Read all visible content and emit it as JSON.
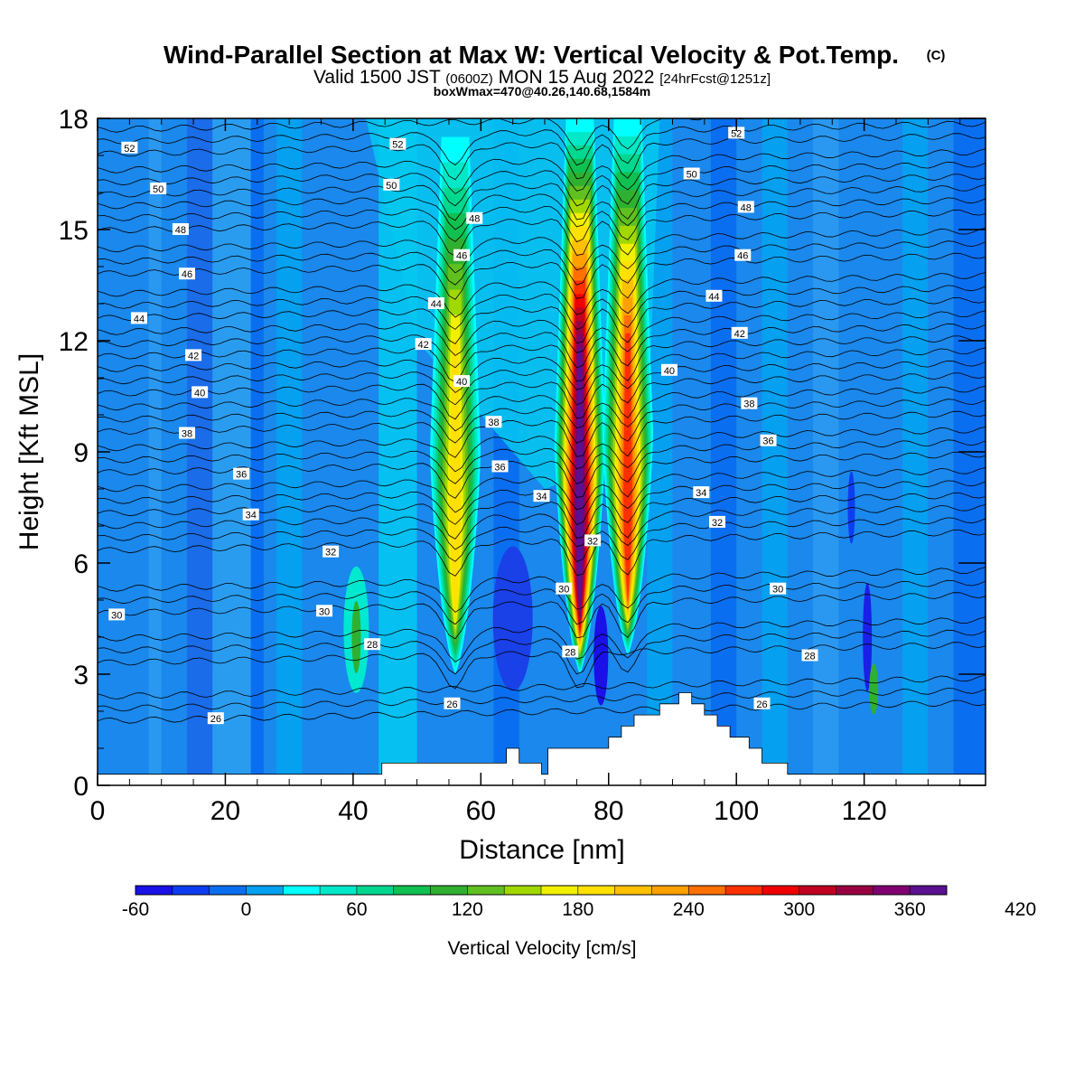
{
  "chart_data": {
    "type": "heatmap",
    "title": "Wind-Parallel Section at Max W: Vertical Velocity & Pot.Temp.",
    "title_mark": "(C)",
    "subtitle_parts": [
      "Valid 1500 JST",
      "(0600Z)",
      "MON 15 Aug 2022",
      "[24hrFcst@1251z]"
    ],
    "info_line": "boxWmax=470@40.26,140.68,1584m",
    "xlabel": "Distance [nm]",
    "ylabel": "Height [Kft MSL]",
    "xlim": [
      0,
      139
    ],
    "ylim": [
      0,
      18
    ],
    "x_ticks": [
      0,
      20,
      40,
      60,
      80,
      100,
      120
    ],
    "y_ticks": [
      0,
      3,
      6,
      9,
      12,
      15,
      18
    ],
    "colorbar": {
      "label": "Vertical Velocity [cm/s]",
      "min": -60,
      "step": 20,
      "ticks": [
        -60,
        0,
        60,
        120,
        180,
        240,
        300,
        360,
        420
      ],
      "colors": [
        "#1a10e8",
        "#0d3df0",
        "#0a6ef0",
        "#05a0f0",
        "#00ffff",
        "#00e8c8",
        "#00d890",
        "#10c050",
        "#30b030",
        "#60c020",
        "#a0d800",
        "#f0f000",
        "#ffe000",
        "#ffc000",
        "#ffa000",
        "#ff7000",
        "#ff3000",
        "#ee0000",
        "#c00020",
        "#990040",
        "#800070",
        "#5a1090"
      ]
    },
    "updraft_cores": [
      {
        "x": 56,
        "z_bottom": 3.0,
        "z_top": 17.5,
        "w_max": 180
      },
      {
        "x": 75.5,
        "z_bottom": 3.0,
        "z_top": 18.0,
        "w_max": 360
      },
      {
        "x": 83,
        "z_bottom": 3.5,
        "z_top": 18.0,
        "w_max": 260
      }
    ],
    "theta_contour_labels": [
      {
        "x": 5,
        "z": 17.2,
        "text": "52"
      },
      {
        "x": 47,
        "z": 17.3,
        "text": "52"
      },
      {
        "x": 100,
        "z": 17.6,
        "text": "52"
      },
      {
        "x": 9.5,
        "z": 16.1,
        "text": "50"
      },
      {
        "x": 46,
        "z": 16.2,
        "text": "50"
      },
      {
        "x": 93,
        "z": 16.5,
        "text": "50"
      },
      {
        "x": 13,
        "z": 15.0,
        "text": "48"
      },
      {
        "x": 59,
        "z": 15.3,
        "text": "48"
      },
      {
        "x": 101.5,
        "z": 15.6,
        "text": "48"
      },
      {
        "x": 14,
        "z": 13.8,
        "text": "46"
      },
      {
        "x": 57,
        "z": 14.3,
        "text": "46"
      },
      {
        "x": 101,
        "z": 14.3,
        "text": "46"
      },
      {
        "x": 6.5,
        "z": 12.6,
        "text": "44"
      },
      {
        "x": 53,
        "z": 13.0,
        "text": "44"
      },
      {
        "x": 96.5,
        "z": 13.2,
        "text": "44"
      },
      {
        "x": 15,
        "z": 11.6,
        "text": "42"
      },
      {
        "x": 51,
        "z": 11.9,
        "text": "42"
      },
      {
        "x": 100.5,
        "z": 12.2,
        "text": "42"
      },
      {
        "x": 16,
        "z": 10.6,
        "text": "40"
      },
      {
        "x": 57,
        "z": 10.9,
        "text": "40"
      },
      {
        "x": 89.5,
        "z": 11.2,
        "text": "40"
      },
      {
        "x": 14,
        "z": 9.5,
        "text": "38"
      },
      {
        "x": 62,
        "z": 9.8,
        "text": "38"
      },
      {
        "x": 102,
        "z": 10.3,
        "text": "38"
      },
      {
        "x": 22.5,
        "z": 8.4,
        "text": "36"
      },
      {
        "x": 63,
        "z": 8.6,
        "text": "36"
      },
      {
        "x": 105,
        "z": 9.3,
        "text": "36"
      },
      {
        "x": 24,
        "z": 7.3,
        "text": "34"
      },
      {
        "x": 69.5,
        "z": 7.8,
        "text": "34"
      },
      {
        "x": 94.5,
        "z": 7.9,
        "text": "34"
      },
      {
        "x": 36.5,
        "z": 6.3,
        "text": "32"
      },
      {
        "x": 77.5,
        "z": 6.6,
        "text": "32"
      },
      {
        "x": 97,
        "z": 7.1,
        "text": "32"
      },
      {
        "x": 3,
        "z": 4.6,
        "text": "30"
      },
      {
        "x": 35.5,
        "z": 4.7,
        "text": "30"
      },
      {
        "x": 73,
        "z": 5.3,
        "text": "30"
      },
      {
        "x": 106.5,
        "z": 5.3,
        "text": "30"
      },
      {
        "x": 43,
        "z": 3.8,
        "text": "28"
      },
      {
        "x": 74,
        "z": 3.6,
        "text": "28"
      },
      {
        "x": 111.5,
        "z": 3.5,
        "text": "28"
      },
      {
        "x": 18.5,
        "z": 1.8,
        "text": "26"
      },
      {
        "x": 55.5,
        "z": 2.2,
        "text": "26"
      },
      {
        "x": 104,
        "z": 2.2,
        "text": "26"
      }
    ],
    "terrain": [
      [
        0,
        0.3
      ],
      [
        44.5,
        0.3
      ],
      [
        44.5,
        0.6
      ],
      [
        64,
        0.6
      ],
      [
        64,
        1.0
      ],
      [
        66,
        1.0
      ],
      [
        66,
        0.6
      ],
      [
        69.5,
        0.6
      ],
      [
        69.5,
        0.3
      ],
      [
        70.5,
        0.3
      ],
      [
        70.5,
        1.0
      ],
      [
        80,
        1.0
      ],
      [
        80,
        1.3
      ],
      [
        82,
        1.3
      ],
      [
        82,
        1.6
      ],
      [
        84,
        1.6
      ],
      [
        84,
        1.9
      ],
      [
        88,
        1.9
      ],
      [
        88,
        2.2
      ],
      [
        91,
        2.2
      ],
      [
        91,
        2.5
      ],
      [
        93,
        2.5
      ],
      [
        93,
        2.2
      ],
      [
        95,
        2.2
      ],
      [
        95,
        1.9
      ],
      [
        97,
        1.9
      ],
      [
        97,
        1.6
      ],
      [
        99,
        1.6
      ],
      [
        99,
        1.3
      ],
      [
        102,
        1.3
      ],
      [
        102,
        1.0
      ],
      [
        104,
        1.0
      ],
      [
        104,
        0.6
      ],
      [
        108,
        0.6
      ],
      [
        108,
        0.3
      ],
      [
        139,
        0.3
      ]
    ]
  }
}
